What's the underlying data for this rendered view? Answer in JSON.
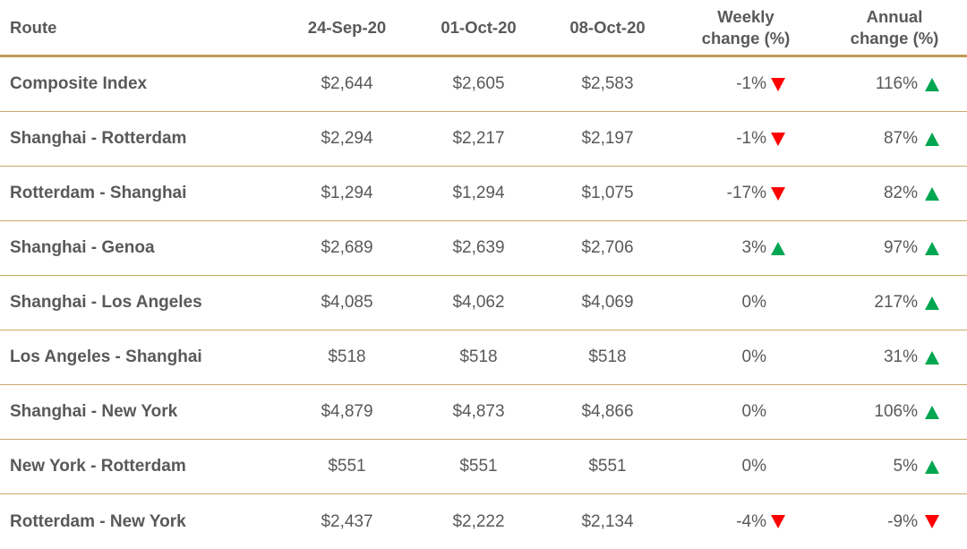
{
  "table": {
    "headers": {
      "route": "Route",
      "d1": "24-Sep-20",
      "d2": "01-Oct-20",
      "d3": "08-Oct-20",
      "weekly_l1": "Weekly",
      "weekly_l2": "change (%)",
      "annual_l1": "Annual",
      "annual_l2": "change (%)"
    },
    "rows": [
      {
        "route": "Composite Index",
        "d1": "$2,644",
        "d2": "$2,605",
        "d3": "$2,583",
        "weekly": "-1%",
        "weekly_dir": "down",
        "annual": "116%",
        "annual_dir": "up"
      },
      {
        "route": "Shanghai - Rotterdam",
        "d1": "$2,294",
        "d2": "$2,217",
        "d3": "$2,197",
        "weekly": "-1%",
        "weekly_dir": "down",
        "annual": "87%",
        "annual_dir": "up"
      },
      {
        "route": "Rotterdam - Shanghai",
        "d1": "$1,294",
        "d2": "$1,294",
        "d3": "$1,075",
        "weekly": "-17%",
        "weekly_dir": "down",
        "annual": "82%",
        "annual_dir": "up"
      },
      {
        "route": "Shanghai - Genoa",
        "d1": "$2,689",
        "d2": "$2,639",
        "d3": "$2,706",
        "weekly": "3%",
        "weekly_dir": "up",
        "annual": "97%",
        "annual_dir": "up"
      },
      {
        "route": "Shanghai - Los Angeles",
        "d1": "$4,085",
        "d2": "$4,062",
        "d3": "$4,069",
        "weekly": "0%",
        "weekly_dir": "none",
        "annual": "217%",
        "annual_dir": "up"
      },
      {
        "route": "Los Angeles - Shanghai",
        "d1": "$518",
        "d2": "$518",
        "d3": "$518",
        "weekly": "0%",
        "weekly_dir": "none",
        "annual": "31%",
        "annual_dir": "up"
      },
      {
        "route": "Shanghai - New York",
        "d1": "$4,879",
        "d2": "$4,873",
        "d3": "$4,866",
        "weekly": "0%",
        "weekly_dir": "none",
        "annual": "106%",
        "annual_dir": "up"
      },
      {
        "route": "New York - Rotterdam",
        "d1": "$551",
        "d2": "$551",
        "d3": "$551",
        "weekly": "0%",
        "weekly_dir": "none",
        "annual": "5%",
        "annual_dir": "up"
      },
      {
        "route": "Rotterdam - New York",
        "d1": "$2,437",
        "d2": "$2,222",
        "d3": "$2,134",
        "weekly": "-4%",
        "weekly_dir": "down",
        "annual": "-9%",
        "annual_dir": "down"
      }
    ]
  },
  "chart_data": {
    "type": "table",
    "columns": [
      "Route",
      "24-Sep-20",
      "01-Oct-20",
      "08-Oct-20",
      "Weekly change (%)",
      "Annual change (%)"
    ],
    "rows": [
      [
        "Composite Index",
        2644,
        2605,
        2583,
        -1,
        116
      ],
      [
        "Shanghai - Rotterdam",
        2294,
        2217,
        2197,
        -1,
        87
      ],
      [
        "Rotterdam - Shanghai",
        1294,
        1294,
        1075,
        -17,
        82
      ],
      [
        "Shanghai - Genoa",
        2689,
        2639,
        2706,
        3,
        97
      ],
      [
        "Shanghai - Los Angeles",
        4085,
        4062,
        4069,
        0,
        217
      ],
      [
        "Los Angeles - Shanghai",
        518,
        518,
        518,
        0,
        31
      ],
      [
        "Shanghai - New York",
        4879,
        4873,
        4866,
        0,
        106
      ],
      [
        "New York - Rotterdam",
        551,
        551,
        551,
        0,
        5
      ],
      [
        "Rotterdam - New York",
        2437,
        2222,
        2134,
        -4,
        -9
      ]
    ]
  },
  "colors": {
    "text": "#595959",
    "rule": "#bf9a56",
    "up_arrow": "#00a651",
    "down_arrow": "#ff0000"
  }
}
